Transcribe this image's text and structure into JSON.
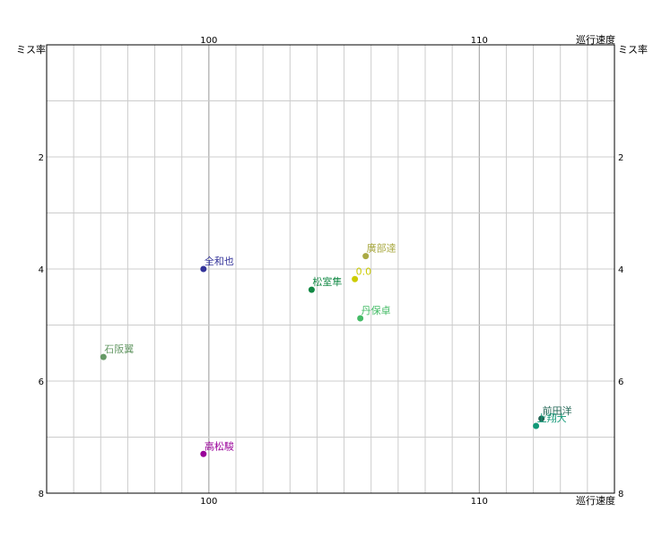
{
  "chart_data": {
    "type": "scatter",
    "x_label": "巡行速度",
    "y_label": "ミス率",
    "x_range": [
      94,
      115
    ],
    "y_range": [
      0,
      8
    ],
    "y_inverted": true,
    "x_axis_position": "top-and-bottom",
    "x_ticks": [
      100,
      110
    ],
    "y_ticks": [
      2,
      4,
      6,
      8
    ],
    "grid": true,
    "points": [
      {
        "label": "全和也",
        "x": 99.8,
        "y": 4.0,
        "color": "#333399"
      },
      {
        "label": "石阪翼",
        "x": 96.1,
        "y": 5.57,
        "color": "#669966"
      },
      {
        "label": "高松駿",
        "x": 99.8,
        "y": 7.3,
        "color": "#990099"
      },
      {
        "label": "松室隼",
        "x": 103.8,
        "y": 4.37,
        "color": "#118844"
      },
      {
        "label": "0.0",
        "x": 105.4,
        "y": 4.18,
        "color": "#cccc00"
      },
      {
        "label": "廣部達",
        "x": 105.8,
        "y": 3.77,
        "color": "#aaaa44"
      },
      {
        "label": "丹保卓",
        "x": 105.6,
        "y": 4.88,
        "color": "#44bb66"
      },
      {
        "label": "前田洋",
        "x": 112.3,
        "y": 6.67,
        "color": "#226655"
      },
      {
        "label": "上翔大",
        "x": 112.1,
        "y": 6.8,
        "color": "#119977"
      }
    ]
  }
}
